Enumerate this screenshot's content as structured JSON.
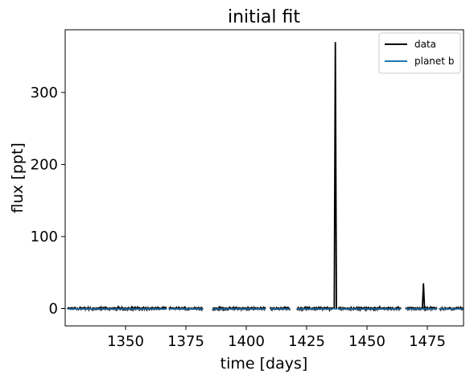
{
  "chart_data": {
    "type": "line",
    "title": "initial fit",
    "xlabel": "time [days]",
    "ylabel": "flux [ppt]",
    "xlim": [
      1325,
      1490
    ],
    "ylim": [
      -24,
      387
    ],
    "xticks": [
      1350,
      1375,
      1400,
      1425,
      1450,
      1475
    ],
    "yticks": [
      0,
      100,
      200,
      300
    ],
    "legend_position": "top-right",
    "series": [
      {
        "name": "data",
        "color": "#000000",
        "segments": [
          {
            "start": 1326,
            "end": 1341,
            "noise": 1.6
          },
          {
            "start": 1339,
            "end": 1367,
            "noise": 1.8
          },
          {
            "start": 1368,
            "end": 1382,
            "noise": 1.5
          },
          {
            "start": 1386,
            "end": 1404,
            "noise": 1.7
          },
          {
            "start": 1403,
            "end": 1408,
            "noise": 1.5
          },
          {
            "start": 1410,
            "end": 1418,
            "noise": 1.6
          },
          {
            "start": 1421,
            "end": 1436,
            "noise": 1.6
          },
          {
            "start": 1436.2,
            "end": 1437.8,
            "noise": 0.0
          },
          {
            "start": 1438,
            "end": 1464,
            "noise": 1.8
          },
          {
            "start": 1466,
            "end": 1479,
            "noise": 1.6
          },
          {
            "start": 1480,
            "end": 1490,
            "noise": 1.5
          }
        ],
        "spikes": [
          {
            "x": 1436.9,
            "peak": 370
          },
          {
            "x": 1473.4,
            "peak": 35
          }
        ]
      },
      {
        "name": "planet b",
        "color": "#1f77b4",
        "model_level": -0.5
      }
    ]
  }
}
